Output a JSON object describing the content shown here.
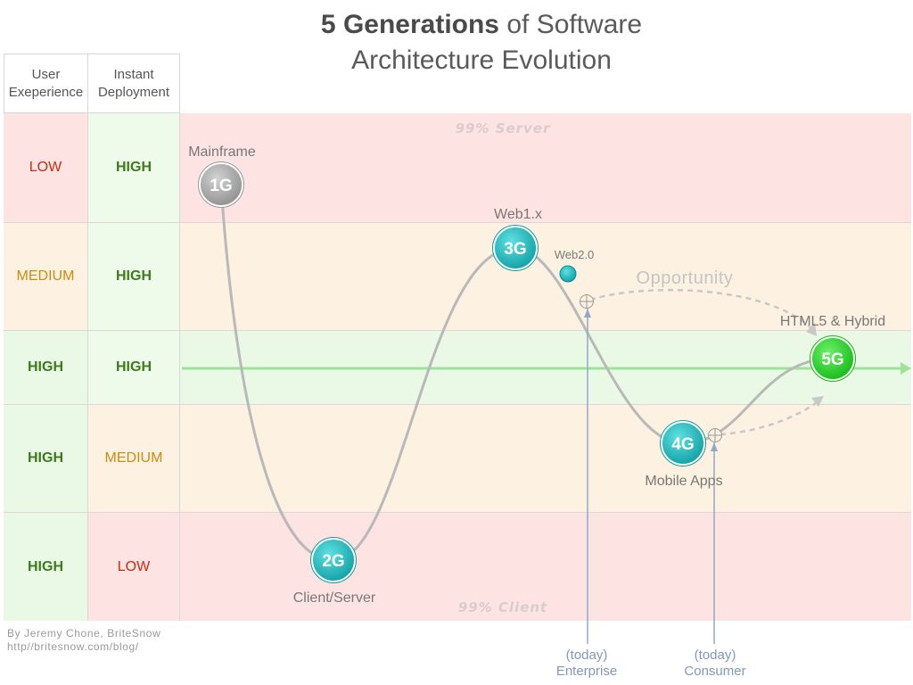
{
  "title": {
    "bold": "5 Generations",
    "rest_line1": " of Software",
    "line2": "Architecture Evolution"
  },
  "headers": {
    "ux": [
      "User",
      "Exeperience"
    ],
    "deploy": [
      "Instant",
      "Deployment"
    ]
  },
  "rows": [
    {
      "ux": "LOW",
      "deploy": "HIGH"
    },
    {
      "ux": "MEDIUM",
      "deploy": "HIGH"
    },
    {
      "ux": "HIGH",
      "deploy": "HIGH"
    },
    {
      "ux": "HIGH",
      "deploy": "MEDIUM"
    },
    {
      "ux": "HIGH",
      "deploy": "LOW"
    }
  ],
  "bands": {
    "server": "99% Server",
    "client": "99% Client"
  },
  "generations": [
    {
      "badge": "1G",
      "label": "Mainframe",
      "color": "#a8a8a8"
    },
    {
      "badge": "2G",
      "label": "Client/Server",
      "color": "#1ab5b8"
    },
    {
      "badge": "3G",
      "label": "Web1.x",
      "color": "#1ab5b8"
    },
    {
      "badge": "4G",
      "label": "Mobile Apps",
      "color": "#1ab5b8"
    },
    {
      "badge": "5G",
      "label": "HTML5 & Hybrid",
      "color": "#22cc22"
    }
  ],
  "web20": "Web2.0",
  "opportunity": "Opportunity",
  "today": [
    {
      "line1": "(today)",
      "line2": "Enterprise"
    },
    {
      "line1": "(today)",
      "line2": "Consumer"
    }
  ],
  "credit": [
    "By Jeremy Chone, BriteSnow",
    "http//britesnow.com/blog/"
  ]
}
